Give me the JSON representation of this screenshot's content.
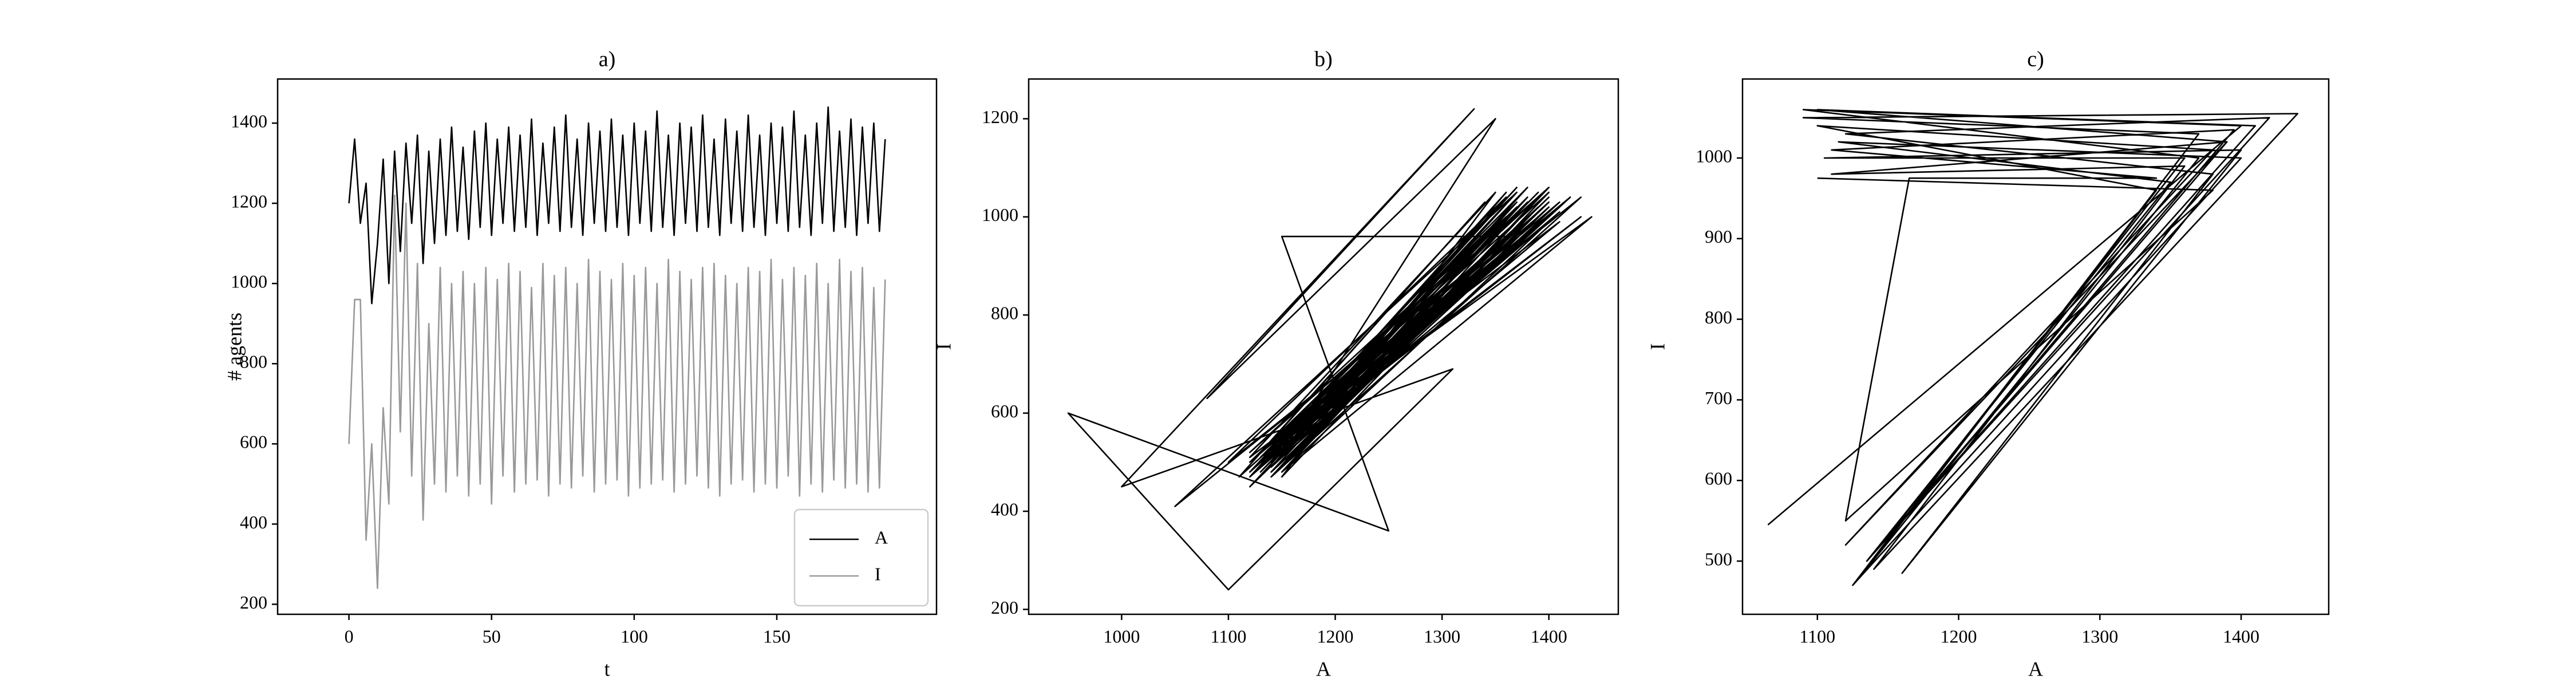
{
  "chart_data": [
    {
      "type": "line",
      "title": "a)",
      "xlabel": "t",
      "ylabel": "# agents",
      "x": [
        0,
        2,
        4,
        6,
        8,
        10,
        12,
        14,
        16,
        18,
        20,
        22,
        24,
        26,
        28,
        30,
        32,
        34,
        36,
        38,
        40,
        42,
        44,
        46,
        48,
        50,
        52,
        54,
        56,
        58,
        60,
        62,
        64,
        66,
        68,
        70,
        72,
        74,
        76,
        78,
        80,
        82,
        84,
        86,
        88,
        90,
        92,
        94,
        96,
        98,
        100,
        102,
        104,
        106,
        108,
        110,
        112,
        114,
        116,
        118,
        120,
        122,
        124,
        126,
        128,
        130,
        132,
        134,
        136,
        138,
        140,
        142,
        144,
        146,
        148,
        150,
        152,
        154,
        156,
        158,
        160,
        162,
        164,
        166,
        168,
        170,
        172,
        174,
        176,
        178,
        180,
        182,
        184,
        186,
        188
      ],
      "series": [
        {
          "name": "A",
          "color": "#000000",
          "values": [
            1200,
            1360,
            1150,
            1250,
            950,
            1100,
            1310,
            1000,
            1330,
            1080,
            1350,
            1150,
            1370,
            1050,
            1330,
            1100,
            1360,
            1120,
            1390,
            1130,
            1340,
            1110,
            1380,
            1140,
            1400,
            1120,
            1360,
            1150,
            1390,
            1130,
            1370,
            1140,
            1410,
            1120,
            1350,
            1150,
            1390,
            1130,
            1420,
            1140,
            1360,
            1120,
            1400,
            1150,
            1380,
            1130,
            1410,
            1140,
            1370,
            1120,
            1400,
            1150,
            1380,
            1130,
            1430,
            1140,
            1370,
            1120,
            1400,
            1150,
            1390,
            1130,
            1420,
            1140,
            1360,
            1120,
            1410,
            1150,
            1380,
            1130,
            1420,
            1140,
            1370,
            1120,
            1400,
            1150,
            1390,
            1130,
            1430,
            1140,
            1370,
            1120,
            1400,
            1150,
            1440,
            1130,
            1380,
            1140,
            1410,
            1120,
            1390,
            1150,
            1400,
            1130,
            1360
          ]
        },
        {
          "name": "I",
          "color": "#999999",
          "values": [
            600,
            960,
            960,
            360,
            600,
            240,
            690,
            450,
            1220,
            630,
            1200,
            520,
            1050,
            410,
            900,
            500,
            1040,
            480,
            1000,
            520,
            1030,
            470,
            1000,
            500,
            1040,
            450,
            1010,
            520,
            1050,
            480,
            1030,
            500,
            990,
            510,
            1050,
            470,
            1020,
            500,
            1040,
            490,
            1000,
            520,
            1060,
            480,
            1030,
            500,
            1010,
            510,
            1050,
            470,
            1020,
            490,
            1040,
            500,
            1000,
            510,
            1060,
            480,
            1030,
            500,
            1010,
            520,
            1040,
            490,
            1050,
            470,
            1020,
            500,
            1000,
            510,
            1040,
            480,
            1030,
            500,
            1060,
            490,
            1010,
            520,
            1040,
            470,
            1020,
            500,
            1050,
            480,
            1000,
            510,
            1060,
            490,
            1030,
            500,
            1040,
            480,
            990,
            490,
            1010
          ]
        }
      ],
      "xlim": [
        -25,
        206
      ],
      "xticks": [
        0,
        50,
        100,
        150
      ],
      "ylim": [
        175,
        1510
      ],
      "yticks": [
        200,
        400,
        600,
        800,
        1000,
        1200,
        1400
      ],
      "legend": "lower right"
    },
    {
      "type": "phase",
      "title": "b)",
      "xlabel": "A",
      "ylabel": "I",
      "color": "#000000",
      "x": [
        1200,
        1360,
        1150,
        1250,
        950,
        1100,
        1310,
        1000,
        1330,
        1080,
        1350,
        1150,
        1370,
        1050,
        1330,
        1100,
        1360,
        1120,
        1390,
        1130,
        1340,
        1110,
        1380,
        1140,
        1400,
        1120,
        1360,
        1150,
        1390,
        1130,
        1370,
        1140,
        1410,
        1120,
        1350,
        1150,
        1390,
        1130,
        1420,
        1140,
        1360,
        1120,
        1400,
        1150,
        1380,
        1130,
        1410,
        1140,
        1370,
        1120,
        1400,
        1150,
        1380,
        1130,
        1430,
        1140,
        1370,
        1120,
        1400,
        1150,
        1390,
        1130,
        1420,
        1140,
        1360,
        1120,
        1410,
        1150,
        1380,
        1130,
        1420,
        1140,
        1370,
        1120,
        1400,
        1150,
        1390,
        1130,
        1430,
        1140,
        1370,
        1120,
        1400,
        1150,
        1440,
        1130,
        1380,
        1140,
        1410,
        1120,
        1390,
        1150,
        1400,
        1130,
        1360
      ],
      "y": [
        600,
        960,
        960,
        360,
        600,
        240,
        690,
        450,
        1220,
        630,
        1200,
        520,
        1050,
        410,
        900,
        500,
        1040,
        480,
        1000,
        520,
        1030,
        470,
        1000,
        500,
        1040,
        450,
        1010,
        520,
        1050,
        480,
        1030,
        500,
        990,
        510,
        1050,
        470,
        1020,
        500,
        1040,
        490,
        1000,
        520,
        1060,
        480,
        1030,
        500,
        1010,
        510,
        1050,
        470,
        1020,
        490,
        1040,
        500,
        1000,
        510,
        1060,
        480,
        1030,
        500,
        1010,
        520,
        1040,
        490,
        1050,
        470,
        1020,
        500,
        1000,
        510,
        1040,
        480,
        1030,
        500,
        1060,
        490,
        1010,
        520,
        1040,
        470,
        1020,
        500,
        1050,
        480,
        1000,
        510,
        1060,
        490,
        1030,
        500,
        1040,
        480,
        990,
        490,
        1010
      ],
      "xlim": [
        913,
        1465
      ],
      "xticks": [
        1000,
        1100,
        1200,
        1300,
        1400
      ],
      "ylim": [
        190,
        1281
      ],
      "yticks": [
        200,
        400,
        600,
        800,
        1000,
        1200
      ]
    },
    {
      "type": "phase",
      "title": "c)",
      "xlabel": "A",
      "ylabel": "I",
      "color": "#000000",
      "x": [
        1065,
        1400,
        1090,
        1370,
        1130,
        1340,
        1100,
        1380,
        1120,
        1390,
        1110,
        1360,
        1140,
        1440,
        1090,
        1370,
        1125,
        1400,
        1115,
        1350,
        1135,
        1410,
        1100,
        1390,
        1150,
        1420,
        1120,
        1380,
        1160,
        1400,
        1105,
        1360,
        1145,
        1395,
        1110,
        1340,
        1165,
        1120,
        1380,
        1100
      ],
      "y": [
        545,
        1040,
        1060,
        1000,
        480,
        960,
        1040,
        1010,
        520,
        1020,
        980,
        990,
        490,
        1055,
        1050,
        1030,
        470,
        1000,
        1020,
        970,
        500,
        1040,
        1060,
        1020,
        530,
        1050,
        1030,
        980,
        485,
        1010,
        1000,
        1000,
        520,
        1035,
        1010,
        975,
        975,
        550,
        960,
        975
      ],
      "xlim": [
        1047,
        1462
      ],
      "xticks": [
        1100,
        1200,
        1300,
        1400
      ],
      "ylim": [
        434,
        1098
      ],
      "yticks": [
        500,
        600,
        700,
        800,
        900,
        1000
      ]
    }
  ]
}
